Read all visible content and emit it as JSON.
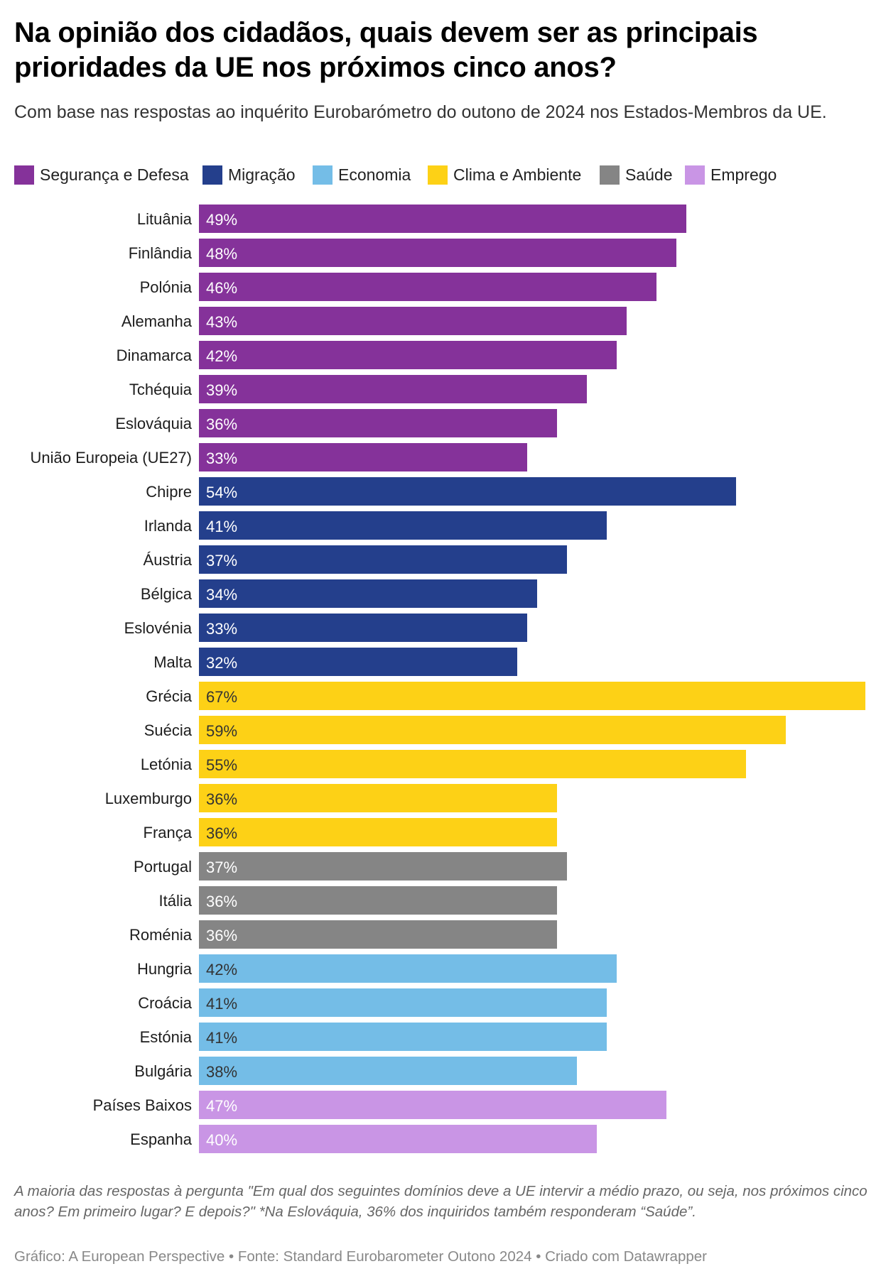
{
  "header": {
    "title": "Na opinião dos cidadãos, quais devem ser as principais prioridades da UE nos próximos cinco anos?",
    "subtitle": "Com base nas respostas ao inquérito Eurobarómetro do outono de 2024 nos Estados-Membros da UE."
  },
  "legend": [
    {
      "label": "Segurança e Defesa",
      "color": "#85329A"
    },
    {
      "label": "Migração",
      "color": "#243F8C"
    },
    {
      "label": "Economia",
      "color": "#74BDE7"
    },
    {
      "label": "Clima e Ambiente",
      "color": "#FDD116"
    },
    {
      "label": "Saúde",
      "color": "#858585"
    },
    {
      "label": "Emprego",
      "color": "#C995E5"
    }
  ],
  "chart_data": {
    "type": "bar",
    "orientation": "horizontal",
    "title": "Na opinião dos cidadãos, quais devem ser as principais prioridades da UE nos próximos cinco anos?",
    "xlabel": "",
    "ylabel": "",
    "xlim": [
      0,
      67
    ],
    "grid": false,
    "legend_position": "top-left",
    "value_suffix": "%",
    "categories": [
      "Lituânia",
      "Finlândia",
      "Polónia",
      "Alemanha",
      "Dinamarca",
      "Tchéquia",
      "Eslováquia",
      "União Europeia (UE27)",
      "Chipre",
      "Irlanda",
      "Áustria",
      "Bélgica",
      "Eslovénia",
      "Malta",
      "Grécia",
      "Suécia",
      "Letónia",
      "Luxemburgo",
      "França",
      "Portugal",
      "Itália",
      "Roménia",
      "Hungria",
      "Croácia",
      "Estónia",
      "Bulgária",
      "Países Baixos",
      "Espanha"
    ],
    "values": [
      49,
      48,
      46,
      43,
      42,
      39,
      36,
      33,
      54,
      41,
      37,
      34,
      33,
      32,
      67,
      59,
      55,
      36,
      36,
      37,
      36,
      36,
      42,
      41,
      41,
      38,
      47,
      40
    ],
    "value_labels": [
      "49%",
      "48%",
      "46%",
      "43%",
      "42%",
      "39%",
      "36%",
      "33%",
      "54%",
      "41%",
      "37%",
      "34%",
      "33%",
      "32%",
      "67%",
      "59%",
      "55%",
      "36%",
      "36%",
      "37%",
      "36%",
      "36%",
      "42%",
      "41%",
      "41%",
      "38%",
      "47%",
      "40%"
    ],
    "priority": [
      "Segurança e Defesa",
      "Segurança e Defesa",
      "Segurança e Defesa",
      "Segurança e Defesa",
      "Segurança e Defesa",
      "Segurança e Defesa",
      "Segurança e Defesa",
      "Segurança e Defesa",
      "Migração",
      "Migração",
      "Migração",
      "Migração",
      "Migração",
      "Migração",
      "Clima e Ambiente",
      "Clima e Ambiente",
      "Clima e Ambiente",
      "Clima e Ambiente",
      "Clima e Ambiente",
      "Saúde",
      "Saúde",
      "Saúde",
      "Economia",
      "Economia",
      "Economia",
      "Economia",
      "Emprego",
      "Emprego"
    ],
    "label_colors": {
      "Segurança e Defesa": "#ffffff",
      "Migração": "#ffffff",
      "Economia": "#333333",
      "Clima e Ambiente": "#333333",
      "Saúde": "#ffffff",
      "Emprego": "#ffffff"
    }
  },
  "notes": {
    "footnote": "A maioria das respostas à pergunta \"Em qual dos seguintes domínios deve a UE intervir a médio prazo, ou seja, nos próximos cinco anos? Em primeiro lugar? E depois?\" *Na Eslováquia, 36% dos inquiridos também responderam “Saúde”.",
    "source": "Gráfico: A European Perspective • Fonte: Standard Eurobarometer Outono 2024 • Criado com Datawrapper"
  }
}
